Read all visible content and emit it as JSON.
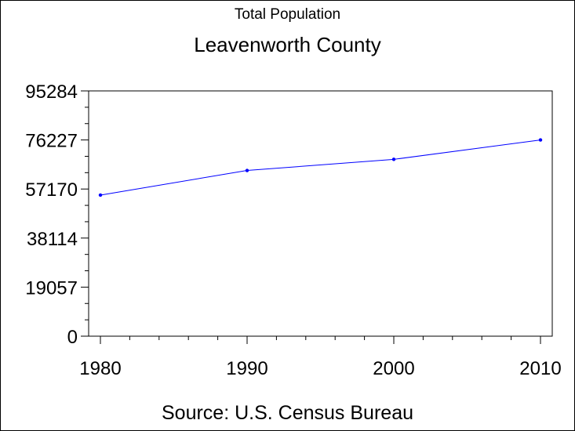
{
  "chart_data": {
    "type": "line",
    "title": "Total Population",
    "subtitle": "Leavenworth County",
    "footnote": "Source: U.S. Census Bureau",
    "x": [
      1980,
      1990,
      2000,
      2010
    ],
    "x_tick_labels": [
      "1980",
      "1990",
      "2000",
      "2010"
    ],
    "xlim": [
      1980,
      2010
    ],
    "y_ticks": [
      0,
      19057,
      38114,
      57170,
      76227,
      95284
    ],
    "y_tick_labels": [
      "0",
      "19057",
      "38114",
      "57170",
      "76227",
      "95284"
    ],
    "ylim": [
      0,
      95284
    ],
    "series": [
      {
        "values": [
          54809,
          64371,
          68691,
          76227
        ],
        "color": "#0000ff"
      }
    ],
    "grid": false,
    "legend": "none"
  }
}
